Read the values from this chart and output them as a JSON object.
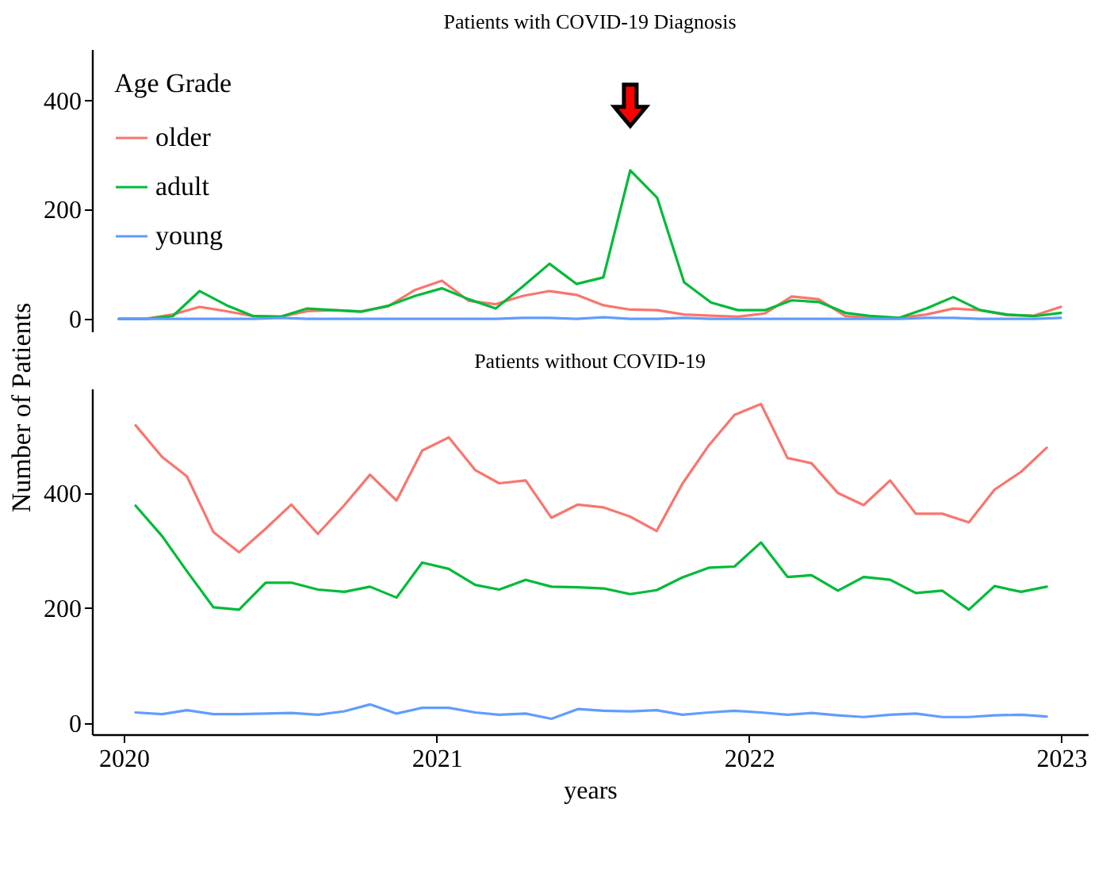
{
  "chart_data": [
    {
      "type": "line",
      "title": "Patients with COVID-19 Diagnosis",
      "ylabel": "Number of Patients",
      "legend_title": "Age Grade",
      "legend": "top left",
      "tick_labels": "y",
      "ylim": [
        -23,
        494
      ],
      "yticks": [
        0,
        200,
        400
      ],
      "categories": [
        null,
        null,
        null,
        null,
        null,
        null,
        null,
        null,
        null,
        null,
        null,
        null,
        null,
        null,
        null,
        null,
        null,
        null,
        null,
        null,
        null,
        null,
        null,
        null,
        null,
        null,
        null,
        null,
        null,
        null,
        null,
        null,
        null,
        null,
        null,
        null
      ],
      "series": [
        {
          "name": "older",
          "color": "#f8766d",
          "values": [
            0,
            0,
            8,
            22,
            14,
            5,
            4,
            14,
            16,
            14,
            23,
            53,
            70,
            33,
            27,
            42,
            51,
            44,
            25,
            17,
            16,
            8,
            6,
            4,
            10,
            41,
            36,
            5,
            2,
            2,
            8,
            19,
            16,
            7,
            6,
            22
          ]
        },
        {
          "name": "adult",
          "color": "#00ba38",
          "values": [
            0,
            0,
            5,
            51,
            25,
            5,
            4,
            19,
            16,
            13,
            24,
            42,
            56,
            36,
            19,
            59,
            101,
            64,
            76,
            272,
            222,
            67,
            30,
            16,
            16,
            34,
            31,
            11,
            5,
            2,
            19,
            40,
            16,
            8,
            5,
            11
          ]
        },
        {
          "name": "young",
          "color": "#619cff",
          "values": [
            0,
            0,
            0,
            0,
            0,
            0,
            2,
            0,
            0,
            0,
            0,
            0,
            0,
            0,
            0,
            2,
            2,
            0,
            3,
            0,
            0,
            2,
            0,
            0,
            0,
            0,
            0,
            0,
            0,
            0,
            2,
            2,
            0,
            0,
            0,
            2
          ]
        }
      ]
    },
    {
      "type": "line",
      "title": "Patients without COVID-19",
      "xlabel": "years",
      "xlim": [
        "2019-11-25",
        "2023-02-01"
      ],
      "xticks": [
        "2020",
        "2021",
        "2022",
        "2023"
      ],
      "ylim": [
        -20,
        582
      ],
      "yticks": [
        0,
        200,
        400
      ],
      "x": [
        "2020-01-15",
        "2020-02-15",
        "2020-03-15",
        "2020-04-15",
        "2020-05-15",
        "2020-06-15",
        "2020-07-15",
        "2020-08-15",
        "2020-09-15",
        "2020-10-15",
        "2020-11-15",
        "2020-12-15",
        "2021-01-15",
        "2021-02-15",
        "2021-03-15",
        "2021-04-15",
        "2021-05-15",
        "2021-06-15",
        "2021-07-15",
        "2021-08-15",
        "2021-09-15",
        "2021-10-15",
        "2021-11-15",
        "2021-12-15",
        "2022-01-15",
        "2022-02-15",
        "2022-03-15",
        "2022-04-15",
        "2022-05-15",
        "2022-06-15",
        "2022-07-15",
        "2022-08-15",
        "2022-09-15",
        "2022-10-15",
        "2022-11-15",
        "2022-12-15"
      ],
      "series": [
        {
          "color": "#f8766d",
          "values": [
            518,
            463,
            429,
            332,
            297,
            338,
            380,
            329,
            379,
            432,
            387,
            474,
            497,
            440,
            417,
            422,
            357,
            380,
            375,
            359,
            334,
            416,
            483,
            536,
            555,
            461,
            452,
            400,
            379,
            422,
            364,
            364,
            349,
            406,
            437,
            479
          ]
        },
        {
          "color": "#00ba38",
          "values": [
            378,
            325,
            264,
            201,
            197,
            244,
            244,
            232,
            228,
            237,
            218,
            279,
            268,
            240,
            232,
            249,
            237,
            236,
            234,
            224,
            231,
            253,
            270,
            272,
            314,
            254,
            257,
            230,
            254,
            249,
            226,
            230,
            197,
            238,
            228,
            237
          ]
        },
        {
          "color": "#619cff",
          "values": [
            18,
            15,
            22,
            15,
            15,
            16,
            17,
            14,
            20,
            32,
            16,
            26,
            26,
            18,
            14,
            16,
            7,
            24,
            21,
            20,
            22,
            14,
            18,
            21,
            18,
            14,
            17,
            13,
            10,
            14,
            16,
            10,
            10,
            13,
            14,
            11
          ]
        }
      ]
    }
  ]
}
